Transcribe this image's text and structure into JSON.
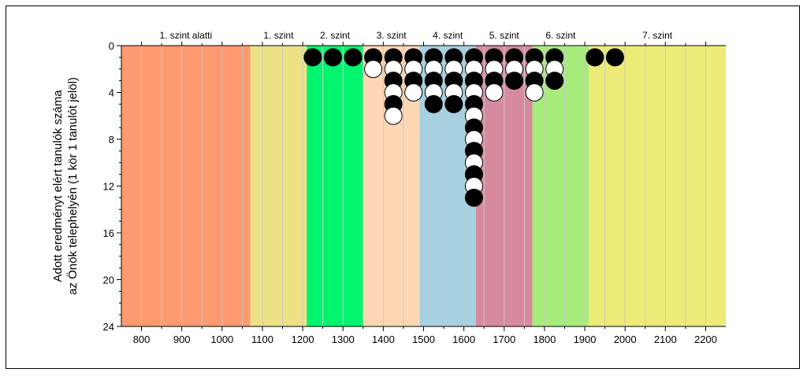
{
  "chart_data": {
    "type": "scatter",
    "title": "",
    "ylabel_lines": [
      "Adott eredményt elért tanulók száma",
      "az Önök telephelyén (1 kör 1 tanulót jelöl)"
    ],
    "xlabel": "",
    "xlim": [
      750,
      2250
    ],
    "ylim": [
      0,
      24
    ],
    "y_inverted": true,
    "x_ticks": [
      800,
      900,
      1000,
      1100,
      1200,
      1300,
      1400,
      1500,
      1600,
      1700,
      1800,
      1900,
      2000,
      2100,
      2200
    ],
    "y_ticks": [
      0,
      4,
      8,
      12,
      16,
      20,
      24
    ],
    "grid": "vertical every 50",
    "bands": [
      {
        "label": "1. szint alatti",
        "from": 750,
        "to": 1070,
        "color": "#FE9A70"
      },
      {
        "label": "1. szint",
        "from": 1070,
        "to": 1210,
        "color": "#EDE185"
      },
      {
        "label": "2. szint",
        "from": 1210,
        "to": 1350,
        "color": "#00F56E"
      },
      {
        "label": "3. szint",
        "from": 1350,
        "to": 1490,
        "color": "#FDD7B4"
      },
      {
        "label": "4. szint",
        "from": 1490,
        "to": 1630,
        "color": "#A7D0E1"
      },
      {
        "label": "5. szint",
        "from": 1630,
        "to": 1770,
        "color": "#D78A9D"
      },
      {
        "label": "6. szint",
        "from": 1770,
        "to": 1910,
        "color": "#A7EC7A"
      },
      {
        "label": "7. szint",
        "from": 1910,
        "to": 2250,
        "color": "#EDEB77"
      }
    ],
    "columns": [
      {
        "x": 1225,
        "count": 1
      },
      {
        "x": 1275,
        "count": 1
      },
      {
        "x": 1325,
        "count": 1
      },
      {
        "x": 1375,
        "count": 2
      },
      {
        "x": 1425,
        "count": 6
      },
      {
        "x": 1475,
        "count": 4
      },
      {
        "x": 1525,
        "count": 5
      },
      {
        "x": 1575,
        "count": 5
      },
      {
        "x": 1625,
        "count": 13
      },
      {
        "x": 1675,
        "count": 4
      },
      {
        "x": 1725,
        "count": 3
      },
      {
        "x": 1775,
        "count": 4
      },
      {
        "x": 1825,
        "count": 3
      },
      {
        "x": 1925,
        "count": 1
      },
      {
        "x": 1975,
        "count": 1
      }
    ],
    "marker_colors": {
      "odd": "#000000",
      "even": "#ffffff"
    }
  }
}
